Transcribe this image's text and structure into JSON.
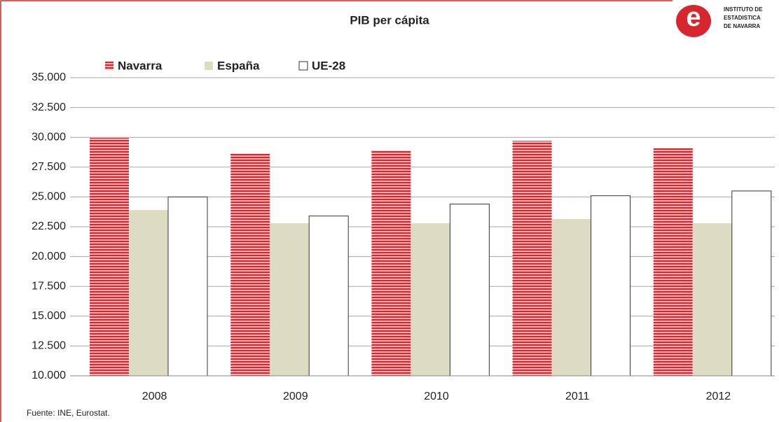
{
  "chart_data": {
    "type": "bar",
    "title": "PIB per cápita",
    "logo": [
      "INSTITUTO DE",
      "ESTADISTICA",
      "DE NAVARRA"
    ],
    "source": "Fuente: INE, Eurostat.",
    "categories": [
      "2008",
      "2009",
      "2010",
      "2011",
      "2012"
    ],
    "series": [
      {
        "name": "Navarra",
        "color": "#d8262e",
        "values": [
          29950,
          28650,
          28900,
          29700,
          29100
        ]
      },
      {
        "name": "España",
        "color": "#dddcc2",
        "values": [
          23900,
          22800,
          22800,
          23150,
          22800
        ]
      },
      {
        "name": "UE-28",
        "color": "#ffffff",
        "values": [
          25000,
          23400,
          24400,
          25100,
          25500
        ]
      }
    ],
    "ylim": [
      10000,
      35000
    ],
    "yticks": [
      {
        "value": 10000,
        "label": "10.000"
      },
      {
        "value": 12500,
        "label": "12.500"
      },
      {
        "value": 15000,
        "label": "15.000"
      },
      {
        "value": 17500,
        "label": "17.500"
      },
      {
        "value": 20000,
        "label": "20.000"
      },
      {
        "value": 22500,
        "label": "22.500"
      },
      {
        "value": 25000,
        "label": "25.000"
      },
      {
        "value": 27500,
        "label": "27.500"
      },
      {
        "value": 30000,
        "label": "30.000"
      },
      {
        "value": 32500,
        "label": "32.500"
      },
      {
        "value": 35000,
        "label": "35.000"
      }
    ],
    "grid": true,
    "legend": "top"
  }
}
